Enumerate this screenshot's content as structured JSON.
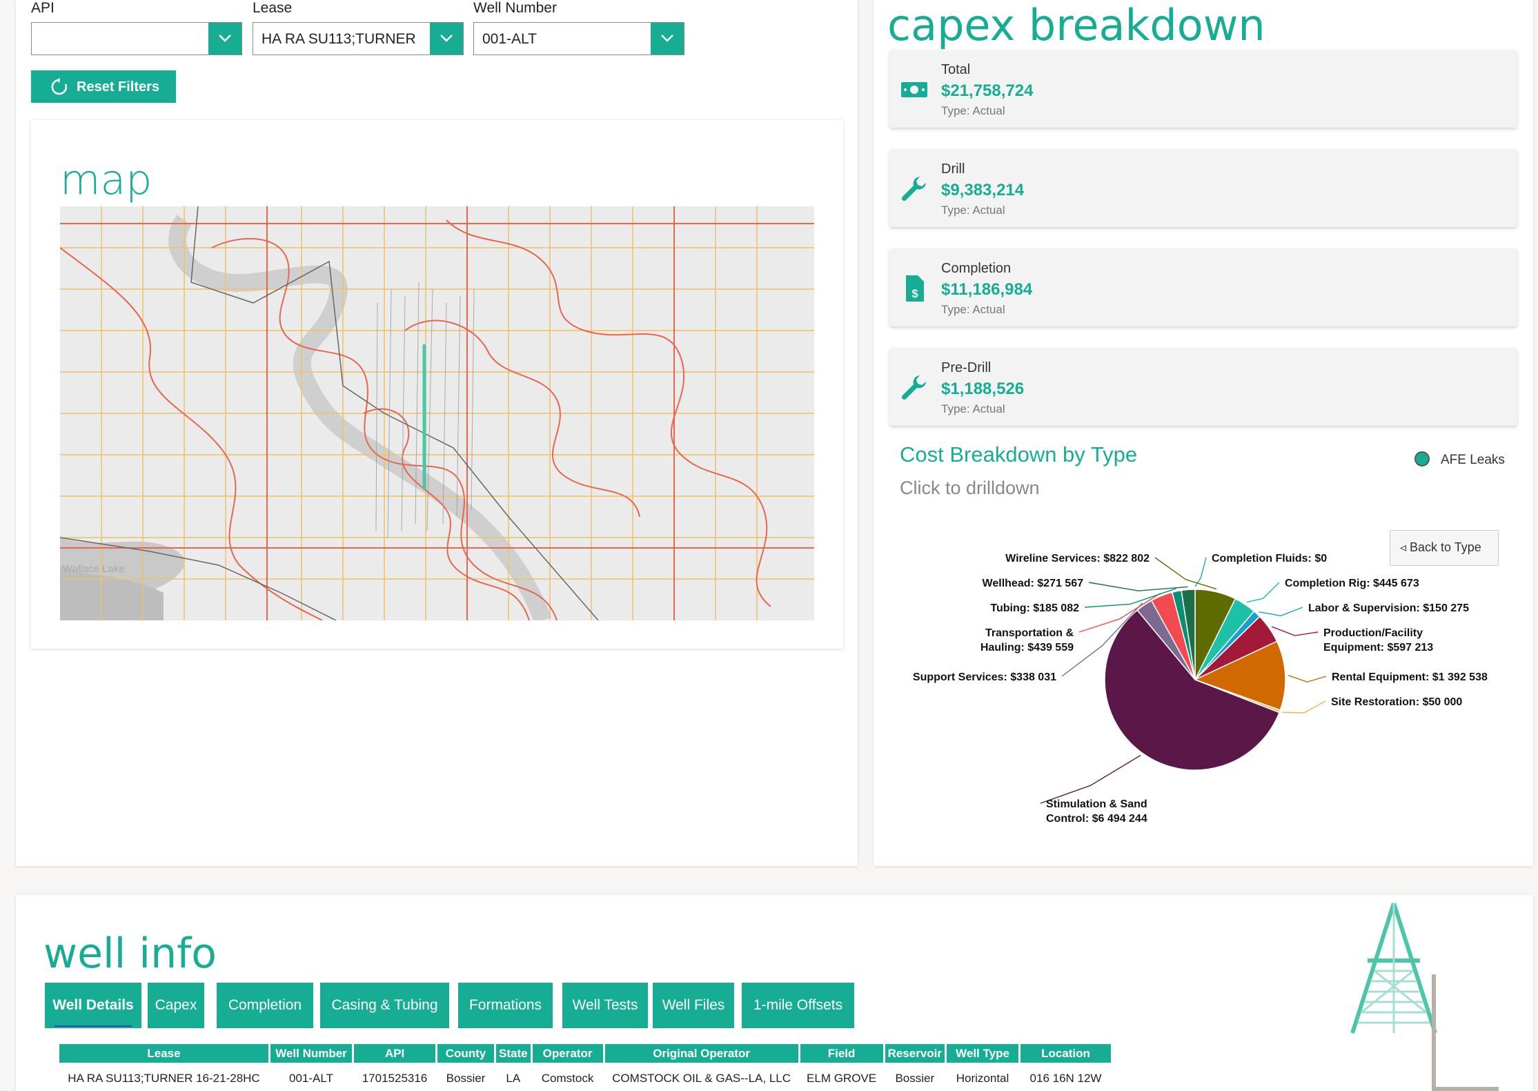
{
  "filters": {
    "api_label": "API",
    "api_value": "",
    "lease_label": "Lease",
    "lease_value": "HA RA SU113;TURNER 1...",
    "well_label": "Well Number",
    "well_value": "001-ALT",
    "reset_label": "Reset Filters"
  },
  "map": {
    "title": "map",
    "place_label": "Wallace Lake"
  },
  "capex": {
    "title": "capex breakdown",
    "kpis": [
      {
        "label": "Total",
        "value": "$21,758,724",
        "type": "Type: Actual",
        "icon": "money-bill-icon"
      },
      {
        "label": "Drill",
        "value": "$9,383,214",
        "type": "Type: Actual",
        "icon": "wrench-icon"
      },
      {
        "label": "Completion",
        "value": "$11,186,984",
        "type": "Type: Actual",
        "icon": "invoice-dollar-icon"
      },
      {
        "label": "Pre-Drill",
        "value": "$1,188,526",
        "type": "Type: Actual",
        "icon": "wrench-icon"
      }
    ],
    "chart_title": "Cost Breakdown by Type",
    "chart_subtitle": "Click to drilldown",
    "legend_label": "AFE Leaks",
    "back_label": "◃ Back to Type"
  },
  "chart_data": {
    "type": "pie",
    "title": "Cost Breakdown by Type",
    "slices": [
      {
        "name": "Completion Fluids",
        "value": 0,
        "label": "Completion Fluids: $0",
        "color": "#17ad95"
      },
      {
        "name": "Wireline Services",
        "value": 822802,
        "label": "Wireline Services: $822 802",
        "color": "#5e6b00"
      },
      {
        "name": "Completion Rig",
        "value": 445673,
        "label": "Completion Rig: $445 673",
        "color": "#1cc1a6"
      },
      {
        "name": "Labor & Supervision",
        "value": 150275,
        "label": "Labor & Supervision: $150 275",
        "color": "#1a9fd0"
      },
      {
        "name": "Production/Facility Equipment",
        "value": 597213,
        "label": "Production/Facility Equipment: $597 213",
        "color": "#a3193a"
      },
      {
        "name": "Rental Equipment",
        "value": 1392538,
        "label": "Rental Equipment: $1 392 538",
        "color": "#d06a00"
      },
      {
        "name": "Site Restoration",
        "value": 50000,
        "label": "Site Restoration: $50 000",
        "color": "#e8b64a"
      },
      {
        "name": "Stimulation & Sand Control",
        "value": 6494244,
        "label": "Stimulation & Sand Control: $6 494 244",
        "color": "#5a1747"
      },
      {
        "name": "Support Services",
        "value": 338031,
        "label": "Support Services: $338 031",
        "color": "#7c6a90"
      },
      {
        "name": "Transportation & Hauling",
        "value": 439559,
        "label": "Transportation & Hauling: $439 559",
        "color": "#f24a4f"
      },
      {
        "name": "Tubing",
        "value": 185082,
        "label": "Tubing: $185 082",
        "color": "#0b8f74"
      },
      {
        "name": "Wellhead",
        "value": 271567,
        "label": "Wellhead: $271 567",
        "color": "#1b6e45"
      }
    ]
  },
  "well_info": {
    "title": "well info",
    "tabs": [
      "Well Details",
      "Capex",
      "Completion",
      "Casing & Tubing",
      "Formations",
      "Well Tests",
      "Well Files",
      "1-mile Offsets"
    ],
    "columns": [
      "Lease",
      "Well Number",
      "API",
      "County",
      "State",
      "Operator",
      "Original Operator",
      "Field",
      "Reservoir",
      "Well Type",
      "Location"
    ],
    "row": [
      "HA RA SU113;TURNER 16-21-28HC",
      "001-ALT",
      "1701525316",
      "Bossier",
      "LA",
      "Comstock",
      "COMSTOCK OIL & GAS--LA, LLC",
      "ELM GROVE",
      "Bossier",
      "Horizontal",
      "016 16N 12W"
    ]
  }
}
